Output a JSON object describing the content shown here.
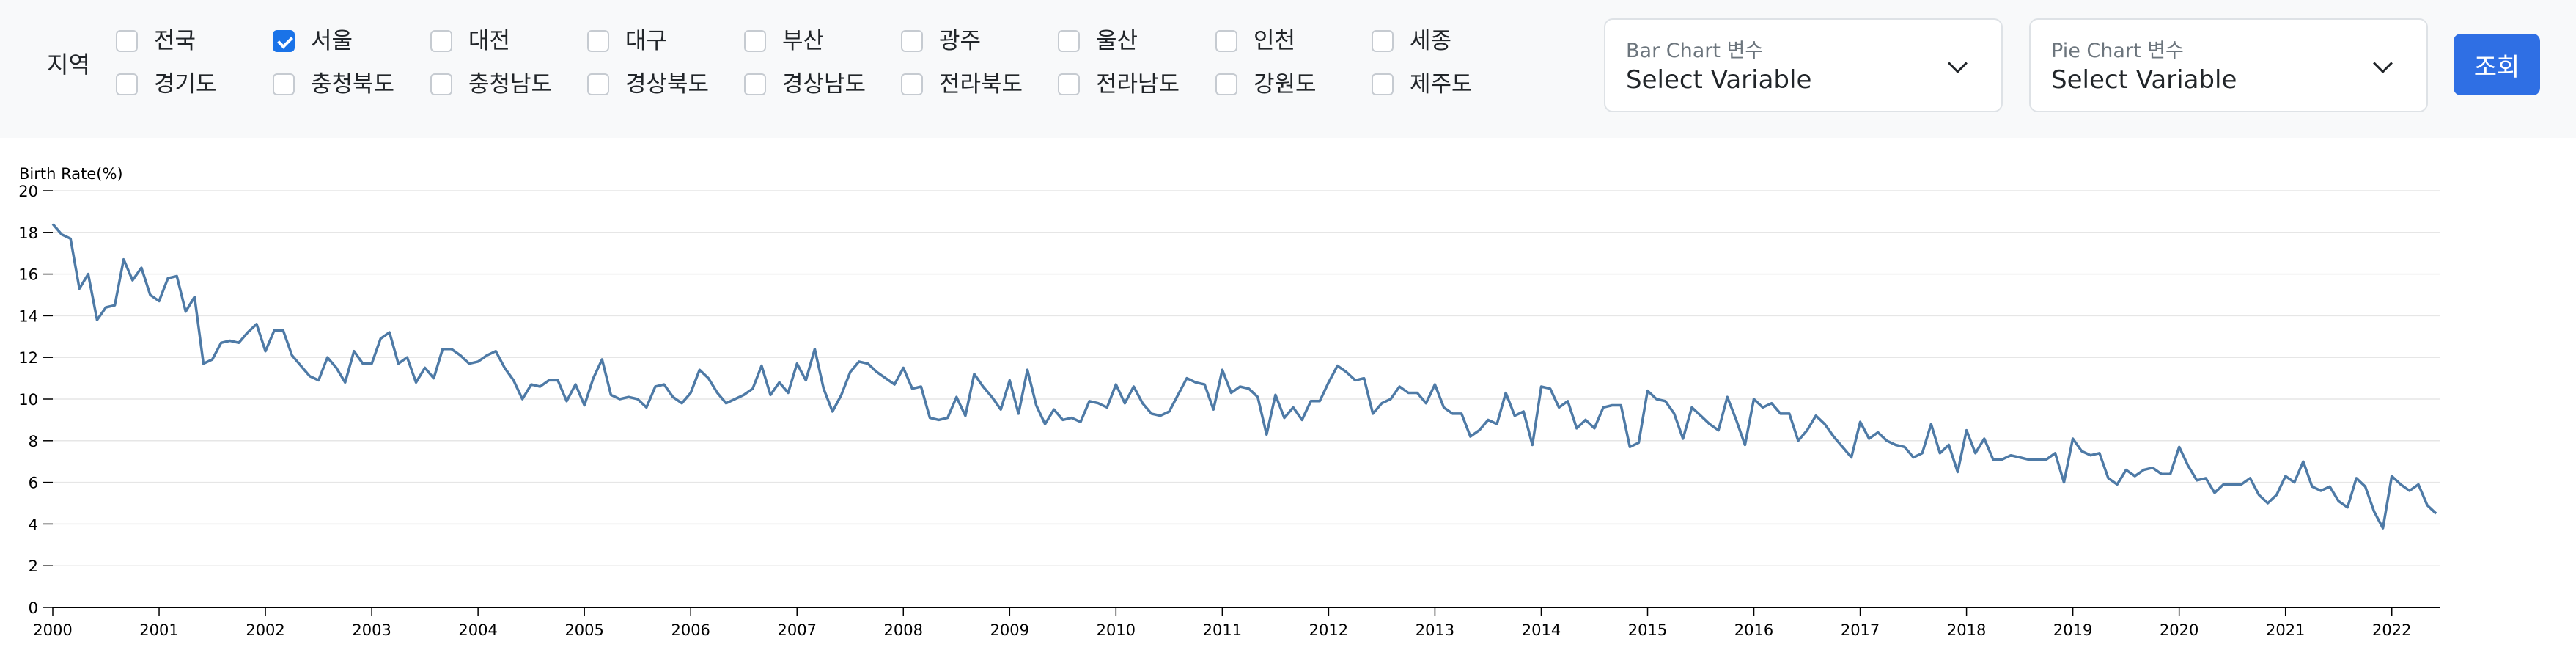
{
  "filters": {
    "region_label": "지역",
    "regions": [
      {
        "label": "전국",
        "checked": false
      },
      {
        "label": "서울",
        "checked": true
      },
      {
        "label": "대전",
        "checked": false
      },
      {
        "label": "대구",
        "checked": false
      },
      {
        "label": "부산",
        "checked": false
      },
      {
        "label": "광주",
        "checked": false
      },
      {
        "label": "울산",
        "checked": false
      },
      {
        "label": "인천",
        "checked": false
      },
      {
        "label": "세종",
        "checked": false
      },
      {
        "label": "경기도",
        "checked": false
      },
      {
        "label": "충청북도",
        "checked": false
      },
      {
        "label": "충청남도",
        "checked": false
      },
      {
        "label": "경상북도",
        "checked": false
      },
      {
        "label": "경상남도",
        "checked": false
      },
      {
        "label": "전라북도",
        "checked": false
      },
      {
        "label": "전라남도",
        "checked": false
      },
      {
        "label": "강원도",
        "checked": false
      },
      {
        "label": "제주도",
        "checked": false
      }
    ],
    "bar_select": {
      "label": "Bar Chart 변수",
      "value": "Select Variable"
    },
    "pie_select": {
      "label": "Pie Chart 변수",
      "value": "Select Variable"
    },
    "search_label": "조회"
  },
  "colors": {
    "line": "#4e7aa6",
    "accent": "#2f6fe4",
    "grid": "#e6e6e6"
  },
  "chart_data": {
    "type": "line",
    "ylabel": "Birth Rate(%)",
    "xlabel": "",
    "x_ticks": [
      "2000",
      "2001",
      "2002",
      "2003",
      "2004",
      "2005",
      "2006",
      "2007",
      "2008",
      "2009",
      "2010",
      "2011",
      "2012",
      "2013",
      "2014",
      "2015",
      "2016",
      "2017",
      "2018",
      "2019",
      "2020",
      "2021",
      "2022"
    ],
    "y_ticks": [
      0,
      2,
      4,
      6,
      8,
      10,
      12,
      14,
      16,
      18,
      20
    ],
    "xlim": [
      2000,
      2022.45
    ],
    "ylim": [
      0,
      20
    ],
    "grid": true,
    "series": [
      {
        "start_year": 2000,
        "frequency": "monthly",
        "values": [
          18.4,
          17.9,
          17.7,
          15.3,
          16.0,
          13.8,
          14.4,
          14.5,
          16.7,
          15.7,
          16.3,
          15.0,
          14.7,
          15.8,
          15.9,
          14.2,
          14.9,
          11.7,
          11.9,
          12.7,
          12.8,
          12.7,
          13.2,
          13.6,
          12.3,
          13.3,
          13.3,
          12.1,
          11.6,
          11.1,
          10.9,
          12.0,
          11.5,
          10.8,
          12.3,
          11.7,
          11.7,
          12.9,
          13.2,
          11.7,
          12.0,
          10.8,
          11.5,
          11.0,
          12.4,
          12.4,
          12.1,
          11.7,
          11.8,
          12.1,
          12.3,
          11.5,
          10.9,
          10.0,
          10.7,
          10.6,
          10.9,
          10.9,
          9.9,
          10.7,
          9.7,
          11.0,
          11.9,
          10.2,
          10.0,
          10.1,
          10.0,
          9.6,
          10.6,
          10.7,
          10.1,
          9.8,
          10.3,
          11.4,
          11.0,
          10.3,
          9.8,
          10.0,
          10.2,
          10.5,
          11.6,
          10.2,
          10.8,
          10.3,
          11.7,
          10.9,
          12.4,
          10.5,
          9.4,
          10.2,
          11.3,
          11.8,
          11.7,
          11.3,
          11.0,
          10.7,
          11.5,
          10.5,
          10.6,
          9.1,
          9.0,
          9.1,
          10.1,
          9.2,
          11.2,
          10.6,
          10.1,
          9.5,
          10.9,
          9.3,
          11.4,
          9.7,
          8.8,
          9.5,
          9.0,
          9.1,
          8.9,
          9.9,
          9.8,
          9.6,
          10.7,
          9.8,
          10.6,
          9.8,
          9.3,
          9.2,
          9.4,
          10.2,
          11.0,
          10.8,
          10.7,
          9.5,
          11.4,
          10.3,
          10.6,
          10.5,
          10.1,
          8.3,
          10.2,
          9.1,
          9.6,
          9.0,
          9.9,
          9.9,
          10.8,
          11.6,
          11.3,
          10.9,
          11.0,
          9.3,
          9.8,
          10.0,
          10.6,
          10.3,
          10.3,
          9.8,
          10.7,
          9.6,
          9.3,
          9.3,
          8.2,
          8.5,
          9.0,
          8.8,
          10.3,
          9.2,
          9.4,
          7.8,
          10.6,
          10.5,
          9.6,
          9.9,
          8.6,
          9.0,
          8.6,
          9.6,
          9.7,
          9.7,
          7.7,
          7.9,
          10.4,
          10.0,
          9.9,
          9.3,
          8.1,
          9.6,
          9.2,
          8.8,
          8.5,
          10.1,
          9.0,
          7.8,
          10.0,
          9.6,
          9.8,
          9.3,
          9.3,
          8.0,
          8.5,
          9.2,
          8.8,
          8.2,
          7.7,
          7.2,
          8.9,
          8.1,
          8.4,
          8.0,
          7.8,
          7.7,
          7.2,
          7.4,
          8.8,
          7.4,
          7.8,
          6.5,
          8.5,
          7.4,
          8.1,
          7.1,
          7.1,
          7.3,
          7.2,
          7.1,
          7.1,
          7.1,
          7.4,
          6.0,
          8.1,
          7.5,
          7.3,
          7.4,
          6.2,
          5.9,
          6.6,
          6.3,
          6.6,
          6.7,
          6.4,
          6.4,
          7.7,
          6.8,
          6.1,
          6.2,
          5.5,
          5.9,
          5.9,
          5.9,
          6.2,
          5.4,
          5.0,
          5.4,
          6.3,
          6.0,
          7.0,
          5.8,
          5.6,
          5.8,
          5.1,
          4.8,
          6.2,
          5.8,
          4.6,
          3.8,
          6.3,
          5.9,
          5.6,
          5.9,
          4.9,
          4.5
        ]
      }
    ]
  }
}
